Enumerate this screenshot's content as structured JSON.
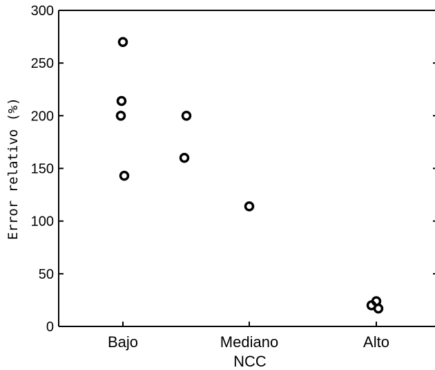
{
  "chart_data": {
    "type": "scatter",
    "title": "",
    "xlabel": "NCC",
    "ylabel": "Error relativo (%)",
    "categories": [
      "Bajo",
      "Mediano",
      "Alto"
    ],
    "ylim": [
      0,
      300
    ],
    "yticks": [
      0,
      50,
      100,
      150,
      200,
      250,
      300
    ],
    "grid": false,
    "legend": "none",
    "marker_color": "#000000",
    "marker": "circle-open",
    "points": [
      {
        "x": "Bajo",
        "y": 270
      },
      {
        "x": "Bajo",
        "y": 214
      },
      {
        "x": "Bajo",
        "y": 200
      },
      {
        "x": "Bajo",
        "y": 143
      },
      {
        "x": "Bajo-Mediano",
        "y": 200
      },
      {
        "x": "Bajo-Mediano",
        "y": 160
      },
      {
        "x": "Mediano",
        "y": 114
      },
      {
        "x": "Alto",
        "y": 20
      },
      {
        "x": "Alto",
        "y": 24
      },
      {
        "x": "Alto",
        "y": 17
      }
    ]
  }
}
